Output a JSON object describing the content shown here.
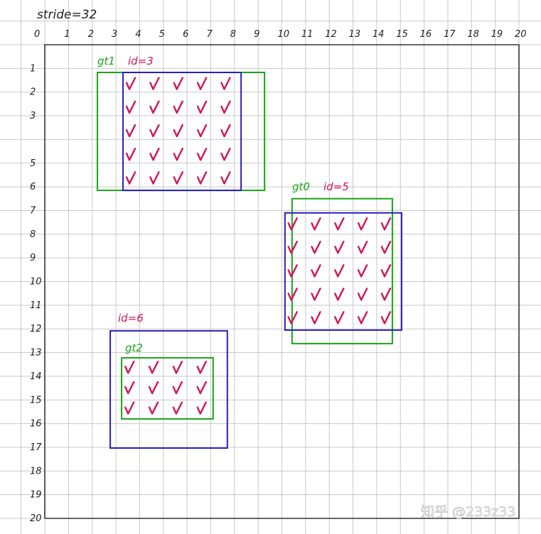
{
  "stride_label": "stride=32",
  "x_labels": [
    "0",
    "1",
    "2",
    "3",
    "4",
    "5",
    "6",
    "7",
    "8",
    "9",
    "10",
    "11",
    "12",
    "13",
    "14",
    "15",
    "16",
    "17",
    "18",
    "19",
    "20"
  ],
  "y_labels": [
    "1",
    "2",
    "3",
    "",
    "5",
    "6",
    "7",
    "8",
    "9",
    "10",
    "11",
    "12",
    "13",
    "14",
    "15",
    "16",
    "17",
    "18",
    "19",
    "20"
  ],
  "grid": {
    "min": 0,
    "max": 20
  },
  "colors": {
    "gt": "#1aa31a",
    "anchor": "#2b1fb8",
    "check": "#d4145a",
    "grid": "#c8c8c8",
    "axis": "#333333",
    "label": "#222222"
  },
  "boxes": [
    {
      "label": "gt1",
      "type": "gt",
      "x": [
        2.22,
        9.27
      ],
      "y": [
        1.17,
        6.15
      ]
    },
    {
      "label": "id=3",
      "type": "anchor",
      "x": [
        3.3,
        8.28
      ],
      "y": [
        1.17,
        6.15
      ]
    },
    {
      "label": "gt0",
      "type": "gt",
      "x": [
        10.43,
        14.66
      ],
      "y": [
        6.5,
        12.62
      ]
    },
    {
      "label": "id=5",
      "type": "anchor",
      "x": [
        10.13,
        15.05
      ],
      "y": [
        7.1,
        12.05
      ]
    },
    {
      "label": "id=6",
      "type": "anchor",
      "x": [
        2.76,
        7.7
      ],
      "y": [
        12.08,
        17.03
      ]
    },
    {
      "label": "gt2",
      "type": "gt",
      "x": [
        3.24,
        7.1
      ],
      "y": [
        13.22,
        15.8
      ]
    }
  ],
  "check_groups": [
    {
      "x": [
        3.3,
        8.3
      ],
      "y": [
        1.17,
        6.15
      ],
      "rows": 5,
      "cols": 5
    },
    {
      "x": [
        10.13,
        15.05
      ],
      "y": [
        7.1,
        12.05
      ],
      "rows": 5,
      "cols": 5
    },
    {
      "x": [
        3.24,
        7.3
      ],
      "y": [
        13.22,
        15.8
      ],
      "rows": 3,
      "cols": 4
    }
  ],
  "watermark": "知乎 @233z33"
}
